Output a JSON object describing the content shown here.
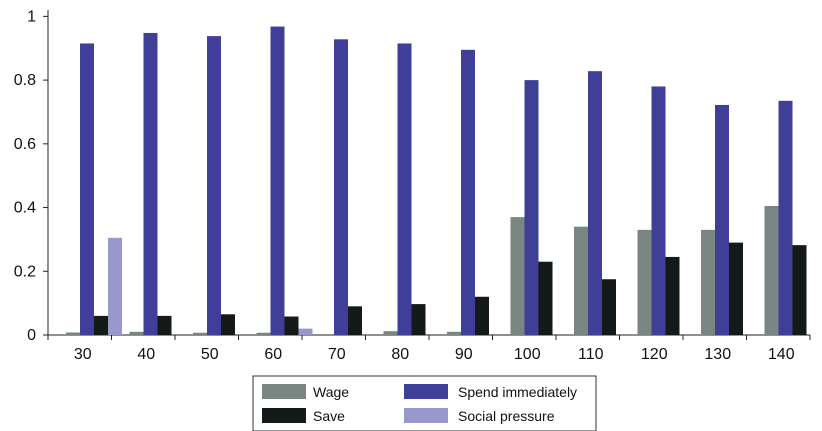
{
  "chart_data": {
    "type": "bar",
    "categories": [
      "30",
      "40",
      "50",
      "60",
      "70",
      "80",
      "90",
      "100",
      "110",
      "120",
      "130",
      "140"
    ],
    "series": [
      {
        "name": "Wage",
        "color": "#7a8582",
        "values": [
          0.008,
          0.01,
          0.007,
          0.007,
          0.0,
          0.012,
          0.01,
          0.37,
          0.34,
          0.33,
          0.33,
          0.405
        ]
      },
      {
        "name": "Spend immediately",
        "color": "#3f3f99",
        "values": [
          0.915,
          0.948,
          0.938,
          0.968,
          0.928,
          0.915,
          0.895,
          0.8,
          0.828,
          0.78,
          0.722,
          0.735
        ]
      },
      {
        "name": "Save",
        "color": "#141a17",
        "values": [
          0.06,
          0.06,
          0.065,
          0.058,
          0.09,
          0.097,
          0.12,
          0.23,
          0.175,
          0.245,
          0.29,
          0.282
        ]
      },
      {
        "name": "Social pressure",
        "color": "#9898cc",
        "values": [
          0.305,
          0.0,
          0.0,
          0.02,
          0.0,
          0.0,
          0.0,
          0.0,
          0.0,
          0.0,
          0.0,
          0.0
        ]
      }
    ],
    "y_ticks": [
      "0",
      "0.2",
      "0.4",
      "0.6",
      "0.8",
      "1"
    ],
    "ylim": [
      0,
      1.02
    ],
    "grid": false,
    "legend_position": "bottom"
  }
}
